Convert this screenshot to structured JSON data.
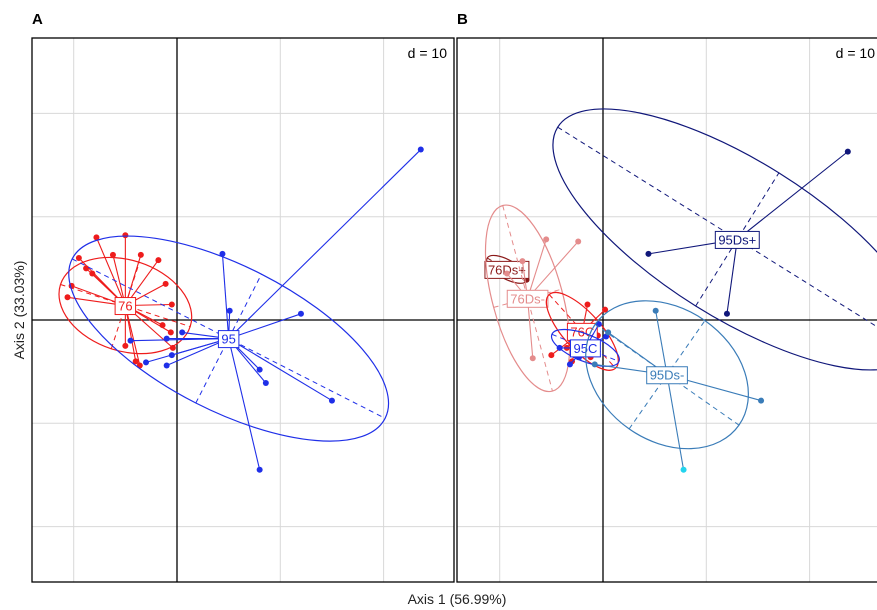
{
  "figure": {
    "xlabel": "Axis 1 (56.99%)",
    "ylabel": "Axis 2 (33.03%)"
  },
  "chart_data": [
    {
      "type": "scatter",
      "panel": "A",
      "grid_label": "d = 10",
      "grid": true,
      "xlim": [
        -10,
        30
      ],
      "ylim": [
        -25,
        27
      ],
      "groups": [
        {
          "label": "76",
          "color": "#ee1c1c",
          "centroid": [
            -5,
            1.4
          ],
          "ellipse": {
            "rx": 4.4,
            "ry": 6.6,
            "angle": 72
          },
          "points": [
            [
              -10.6,
              2.2
            ],
            [
              -10.2,
              3.3
            ],
            [
              -9.5,
              6.0
            ],
            [
              -8.8,
              5.0
            ],
            [
              -8.2,
              4.5
            ],
            [
              -7.8,
              8.0
            ],
            [
              -6.2,
              6.3
            ],
            [
              -5,
              8.2
            ],
            [
              -3.5,
              6.3
            ],
            [
              -1.8,
              5.8
            ],
            [
              -1.1,
              3.5
            ],
            [
              -0.5,
              1.5
            ],
            [
              -1.4,
              -0.5
            ],
            [
              -0.6,
              -1.2
            ],
            [
              -0.4,
              -2.7
            ],
            [
              -4,
              -4.0
            ],
            [
              -3.6,
              -4.4
            ],
            [
              -5,
              -2.5
            ]
          ]
        },
        {
          "label": "95",
          "color": "#1f2fe8",
          "centroid": [
            5,
            -1.8
          ],
          "ellipse": {
            "rx": 7,
            "ry": 17,
            "angle": 63
          },
          "points": [
            [
              23.6,
              16.5
            ],
            [
              4.4,
              6.4
            ],
            [
              5.1,
              0.9
            ],
            [
              12,
              0.6
            ],
            [
              0.5,
              -1.2
            ],
            [
              -1,
              -1.8
            ],
            [
              -4.5,
              -2.0
            ],
            [
              -0.5,
              -3.4
            ],
            [
              -1,
              -4.4
            ],
            [
              -3,
              -4.1
            ],
            [
              8,
              -4.8
            ],
            [
              8.6,
              -6.1
            ],
            [
              15,
              -7.8
            ],
            [
              8,
              -14.5
            ]
          ]
        }
      ]
    },
    {
      "type": "scatter",
      "panel": "B",
      "grid_label": "d = 10",
      "grid": true,
      "xlim": [
        -10,
        30
      ],
      "ylim": [
        -25,
        27
      ],
      "groups": [
        {
          "label": "76Ds+",
          "color": "#8b1a1a",
          "centroid": [
            -9.3,
            4.9
          ],
          "ellipse": {
            "rx": 0.9,
            "ry": 2.2,
            "angle": 60
          },
          "points": [
            [
              -9.9,
              4.3
            ],
            [
              -8.8,
              5.2
            ],
            [
              -7.4,
              3.9
            ]
          ]
        },
        {
          "label": "76Ds-",
          "color": "#e48c8c",
          "centroid": [
            -7.3,
            2.1
          ],
          "ellipse": {
            "rx": 3.4,
            "ry": 9.3,
            "angle": 15
          },
          "points": [
            [
              -5.5,
              7.8
            ],
            [
              -2.4,
              7.6
            ],
            [
              -7.8,
              5.7
            ],
            [
              -9.3,
              4.5
            ],
            [
              -6.8,
              -3.7
            ]
          ]
        },
        {
          "label": "76C",
          "color": "#ee1c1c",
          "centroid": [
            -2,
            -1.1
          ],
          "ellipse": {
            "rx": 1.8,
            "ry": 4.8,
            "angle": 42
          },
          "points": [
            [
              -1.5,
              1.5
            ],
            [
              0.2,
              1.0
            ],
            [
              -0.5,
              -1.5
            ],
            [
              -3.5,
              -2.7
            ],
            [
              -1.2,
              -3.6
            ],
            [
              -3,
              -4.0
            ],
            [
              -5,
              -3.4
            ]
          ]
        },
        {
          "label": "95C",
          "color": "#1f2fe8",
          "centroid": [
            -1.7,
            -2.7
          ],
          "ellipse": {
            "rx": 1.3,
            "ry": 3.5,
            "angle": 68
          },
          "points": [
            [
              -0.4,
              -0.4
            ],
            [
              0.3,
              -1.6
            ],
            [
              -2.4,
              -3.6
            ],
            [
              -4.2,
              -2.7
            ],
            [
              -3.2,
              -4.3
            ]
          ]
        },
        {
          "label": "95Ds+",
          "color": "#10177a",
          "centroid": [
            13,
            7.8
          ],
          "ellipse": {
            "rx": 7.6,
            "ry": 20.5,
            "angle": 58
          },
          "points": [
            [
              23.7,
              16.3
            ],
            [
              4.4,
              6.4
            ],
            [
              12,
              0.6
            ]
          ]
        },
        {
          "label": "95Ds-",
          "color": "#3a7cb8",
          "centroid": [
            6.2,
            -5.3
          ],
          "ellipse": {
            "rx": 6.4,
            "ry": 8.5,
            "angle": 55
          },
          "points": [
            [
              5.1,
              0.9
            ],
            [
              15.3,
              -7.8
            ],
            [
              7.8,
              -14.5
            ],
            [
              -0.8,
              -4.3
            ],
            [
              0.5,
              -1.2
            ]
          ]
        }
      ]
    }
  ]
}
